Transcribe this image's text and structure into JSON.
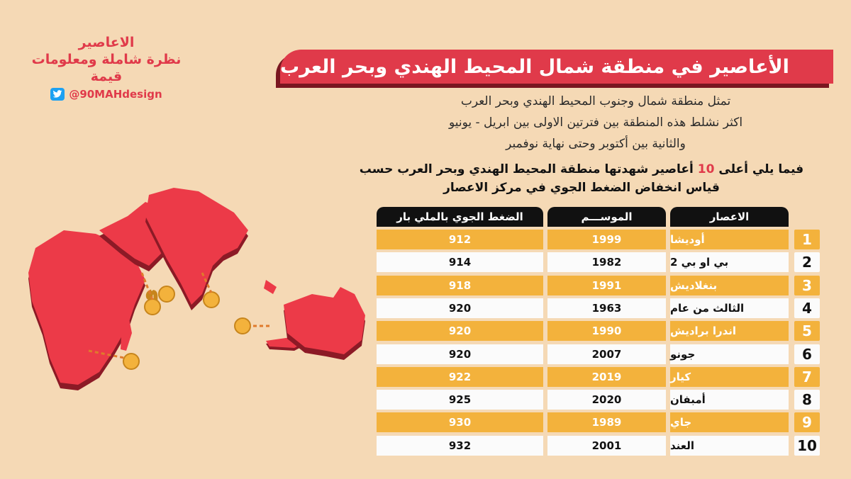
{
  "brand": {
    "line1": "الاعاصير",
    "line2": "نظرة شاملة ومعلومات قيمة",
    "handle": "@90MAHdesign",
    "twitter_icon": "twitter-icon"
  },
  "title": "الأعاصير في منطقة شمال المحيط الهندي وبحر العرب",
  "intro": {
    "line1": "تمثل منطقة شمال وجنوب المحيط الهندي وبحر العرب",
    "line2": "اكثر نشلط هذه المنطقة بين فترتين الاولى بين ابريل - يونيو",
    "line3": "والثانية بين أكتوبر وحتى نهاية نوفمبر"
  },
  "lead": {
    "part1": "فيما يلي أعلى ",
    "highlight": "10",
    "part2": " أعاصير شهدتها منطقة المحيط الهندي وبحر العرب حسب",
    "line2": "قياس انخفاض الضغط الجوي في مركز الاعصار"
  },
  "table": {
    "headers": {
      "name": "الاعصار",
      "season": "الموســـم",
      "pressure": "الضغط الجوي بالملي بار"
    },
    "rows": [
      {
        "rank": "1",
        "name": "أوديشا",
        "season": "1999",
        "pressure": "912"
      },
      {
        "rank": "2",
        "name": "بي او بي 2",
        "season": "1982",
        "pressure": "914"
      },
      {
        "rank": "3",
        "name": "بنغلاديش",
        "season": "1991",
        "pressure": "918"
      },
      {
        "rank": "4",
        "name": "الثالث من عام",
        "season": "1963",
        "pressure": "920"
      },
      {
        "rank": "5",
        "name": "اندرا براديش",
        "season": "1990",
        "pressure": "920"
      },
      {
        "rank": "6",
        "name": "جونو",
        "season": "2007",
        "pressure": "920"
      },
      {
        "rank": "7",
        "name": "كيار",
        "season": "2019",
        "pressure": "922"
      },
      {
        "rank": "8",
        "name": "أمبفان",
        "season": "2020",
        "pressure": "925"
      },
      {
        "rank": "9",
        "name": "جاي",
        "season": "1989",
        "pressure": "930"
      },
      {
        "rank": "10",
        "name": "العند",
        "season": "2001",
        "pressure": "932"
      }
    ]
  },
  "colors": {
    "accent": "#e03a4a",
    "row_highlight": "#f3b23c",
    "background": "#f5d9b5",
    "header": "#111111"
  }
}
